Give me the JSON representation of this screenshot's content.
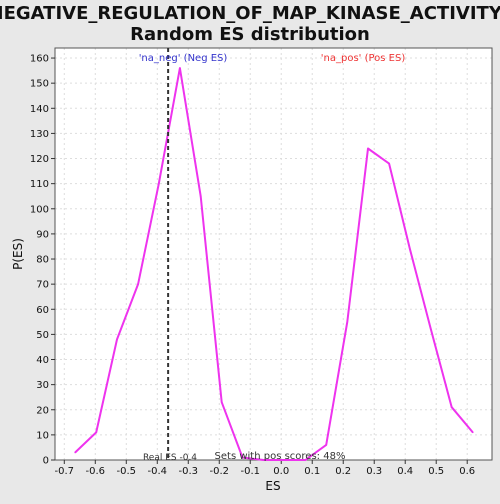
{
  "chart_data": {
    "type": "line",
    "title_line1": "NEGATIVE_REGULATION_OF_MAP_KINASE_ACTIVITY:",
    "title_line2": "Random ES distribution",
    "xlabel": "ES",
    "ylabel": "P(ES)",
    "xlim": [
      -0.73,
      0.68
    ],
    "ylim": [
      0,
      164
    ],
    "xticks": [
      -0.7,
      -0.6,
      -0.5,
      -0.4,
      -0.3,
      -0.2,
      -0.1,
      0.0,
      0.1,
      0.2,
      0.3,
      0.4,
      0.5,
      0.6
    ],
    "xtick_labels": [
      "-0.7",
      "-0.6",
      "-0.5",
      "-0.4",
      "-0.3",
      "-0.2",
      "-0.1",
      "0.0",
      "0.1",
      "0.2",
      "0.3",
      "0.4",
      "0.5",
      "0.6"
    ],
    "yticks": [
      0,
      10,
      20,
      30,
      40,
      50,
      60,
      70,
      80,
      90,
      100,
      110,
      120,
      130,
      140,
      150,
      160
    ],
    "ytick_labels": [
      "0",
      "10",
      "20",
      "30",
      "40",
      "50",
      "60",
      "70",
      "80",
      "90",
      "100",
      "110",
      "120",
      "130",
      "140",
      "150",
      "160"
    ],
    "grid": true,
    "series": [
      {
        "color": "#ee33ee",
        "x": [
          -0.665,
          -0.597,
          -0.53,
          -0.462,
          -0.395,
          -0.327,
          -0.26,
          -0.192,
          -0.125,
          -0.057,
          0.01,
          0.078,
          0.145,
          0.213,
          0.28,
          0.348,
          0.415,
          0.483,
          0.55,
          0.618
        ],
        "y": [
          3,
          11,
          48,
          70,
          110,
          156,
          105,
          23,
          1,
          0,
          0,
          0,
          6,
          55,
          124,
          118,
          84,
          52,
          21,
          11
        ]
      }
    ],
    "real_es": -0.365,
    "annotations": {
      "neg_label": "'na_neg' (Neg ES)",
      "neg_color": "#3333cc",
      "pos_label": "'na_pos' (Pos ES)",
      "pos_color": "#ee3333",
      "real_es_label": "Real ES -0.4",
      "pos_scores_label": "Sets with pos scores: 48%"
    }
  }
}
